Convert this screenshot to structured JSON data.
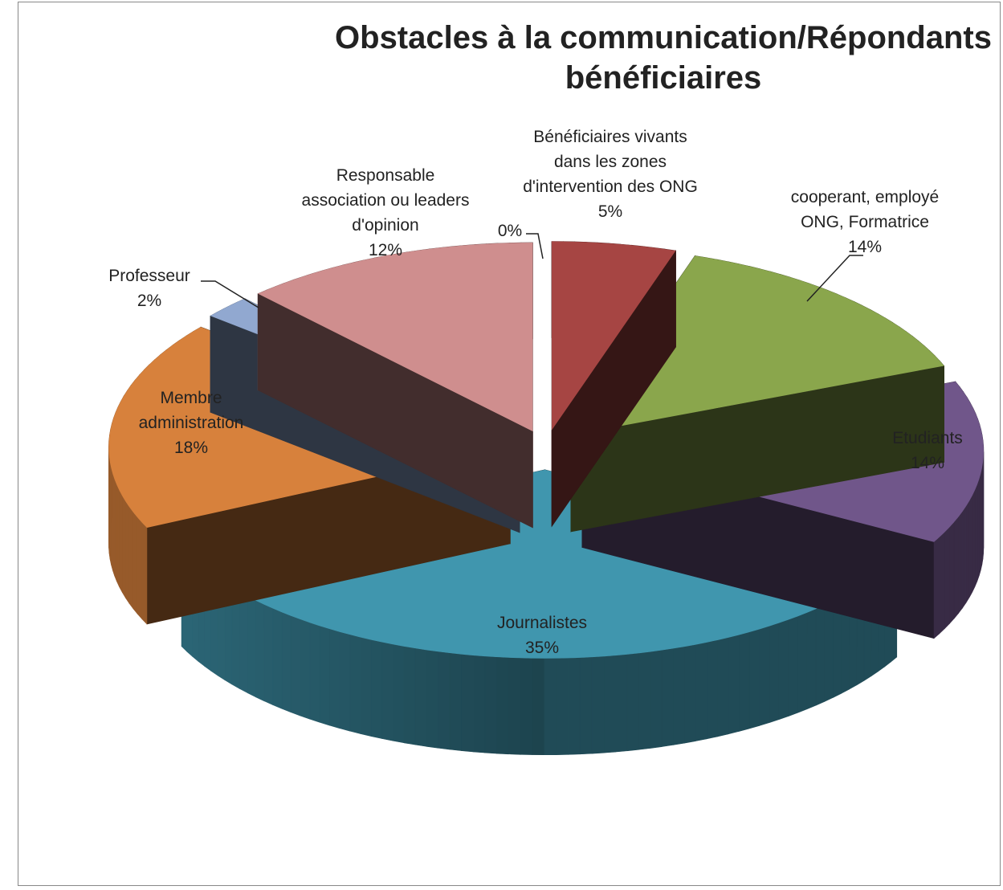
{
  "chart_data": {
    "type": "pie",
    "title": "Obstacles à la communication/Répondants bénéficiaires",
    "categories": [
      "Bénéficiaires vivants dans les zones d'intervention des ONG",
      "cooperant, employé ONG, Formatrice",
      "Etudiants",
      "Journalistes",
      "Membre administration",
      "Professeur",
      "Responsable association ou leaders d'opinion",
      null
    ],
    "values": [
      5,
      14,
      14,
      35,
      18,
      2,
      12,
      0
    ],
    "value_labels": [
      "5%",
      "14%",
      "14%",
      "35%",
      "18%",
      "2%",
      "12%",
      "0%"
    ],
    "colors": [
      "#a64543",
      "#8aa64c",
      "#70568a",
      "#4096ae",
      "#d7813c",
      "#91a8d0",
      "#cf8e8e",
      "#4f81bd"
    ]
  }
}
